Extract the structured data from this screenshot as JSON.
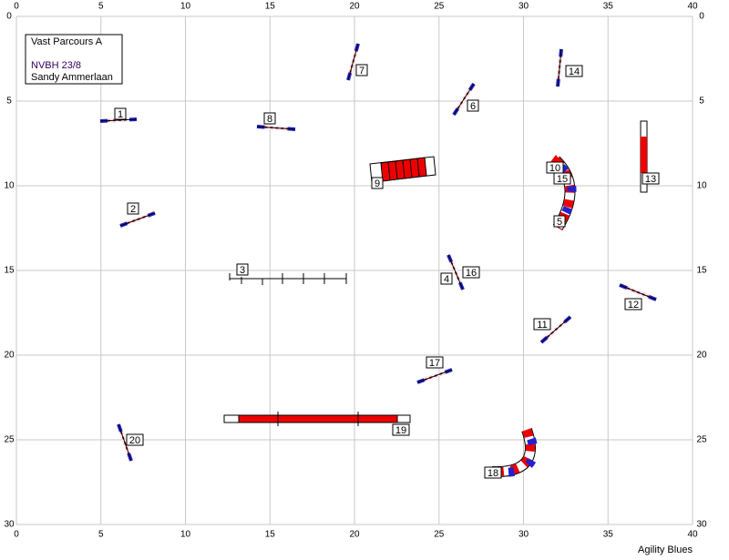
{
  "info": {
    "title": "Vast Parcours A",
    "event": "NVBH 23/8",
    "judge": "Sandy Ammerlaan"
  },
  "axes": {
    "xlim": [
      0,
      40
    ],
    "xticks": [
      0,
      5,
      10,
      15,
      20,
      25,
      30,
      35,
      40
    ],
    "ylim": [
      0,
      30
    ],
    "yticks": [
      0,
      5,
      10,
      15,
      20,
      25,
      30
    ]
  },
  "obstacles": [
    {
      "label": "1"
    },
    {
      "label": "2"
    },
    {
      "label": "3"
    },
    {
      "label": "4"
    },
    {
      "label": "5"
    },
    {
      "label": "6"
    },
    {
      "label": "7"
    },
    {
      "label": "8"
    },
    {
      "label": "9"
    },
    {
      "label": "10"
    },
    {
      "label": "11"
    },
    {
      "label": "12"
    },
    {
      "label": "13"
    },
    {
      "label": "14"
    },
    {
      "label": "15"
    },
    {
      "label": "16"
    },
    {
      "label": "17"
    },
    {
      "label": "18"
    },
    {
      "label": "19"
    },
    {
      "label": "20"
    }
  ],
  "footer": "Agility Blues"
}
